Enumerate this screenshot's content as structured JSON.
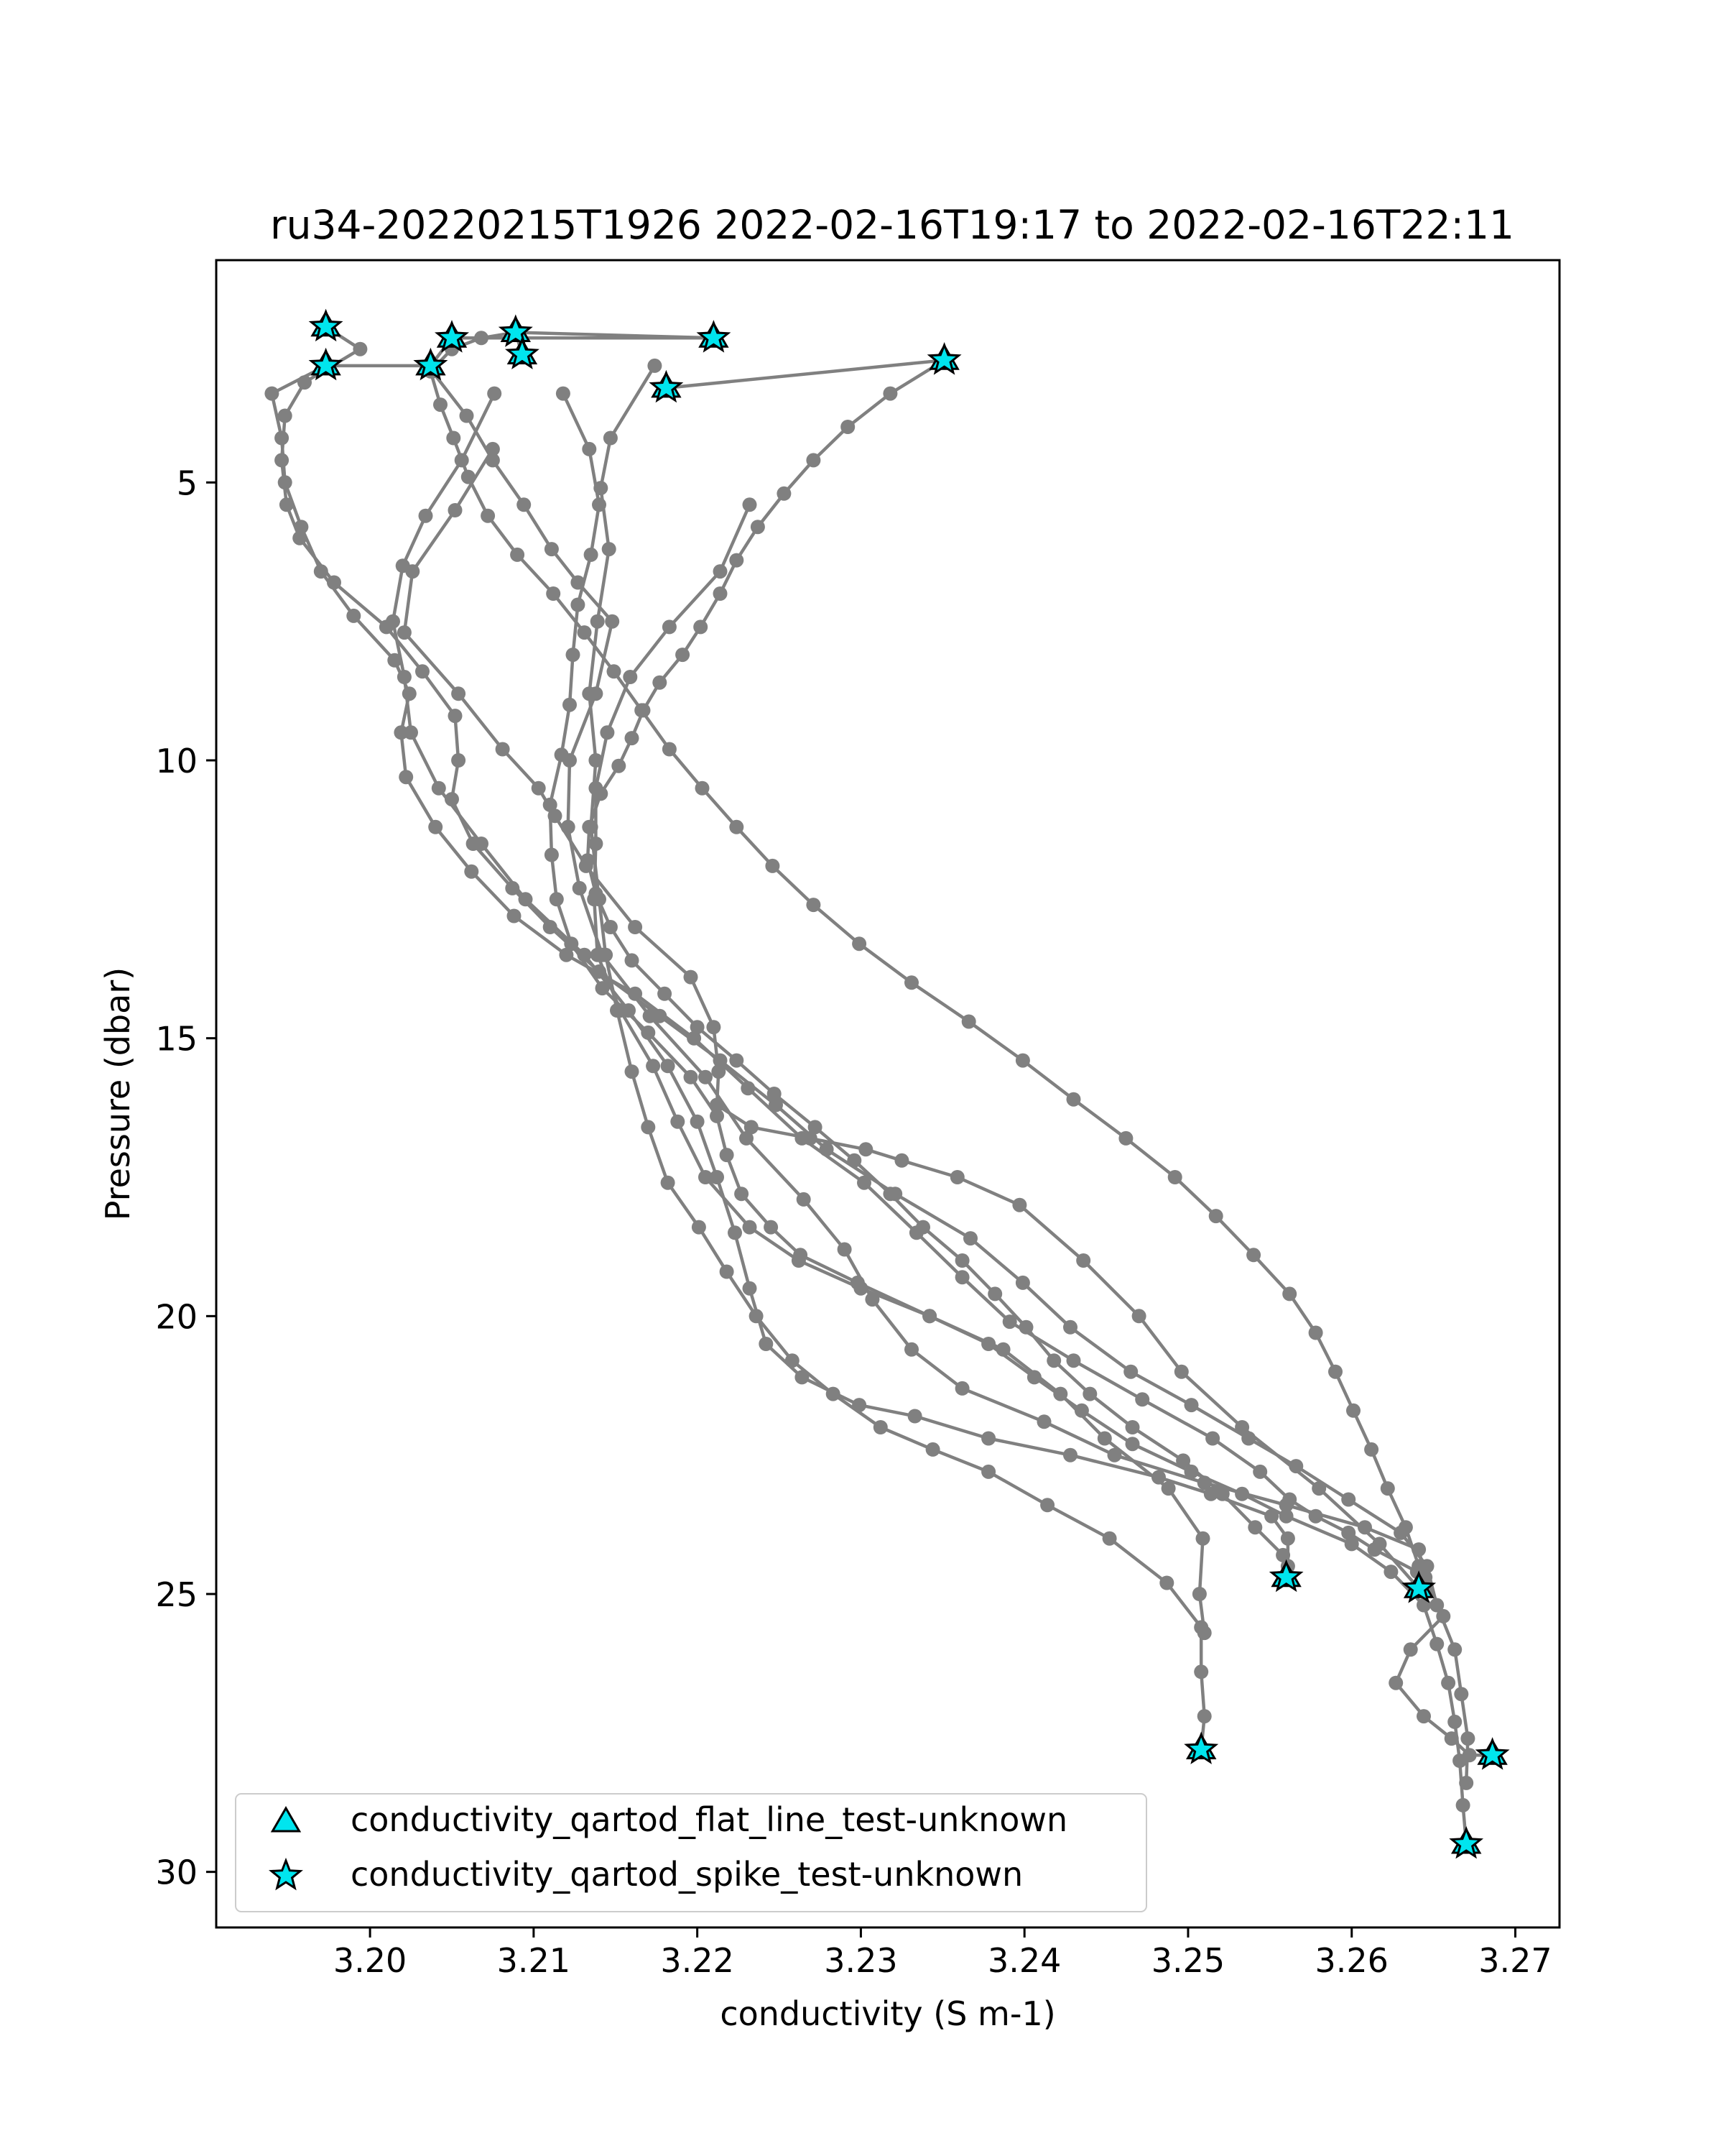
{
  "chart_data": {
    "type": "scatter",
    "title": "ru34-20220215T1926 2022-02-16T19:17 to 2022-02-16T22:11",
    "xlabel": "conductivity (S m-1)",
    "ylabel": "Pressure (dbar)",
    "xlim": [
      3.1906,
      3.2727
    ],
    "ylim": [
      31.0,
      1.0
    ],
    "y_inverted": true,
    "grid": false,
    "legend_position": "lower-left",
    "xticks": [
      {
        "value": 3.2,
        "label": "3.20"
      },
      {
        "value": 3.21,
        "label": "3.21"
      },
      {
        "value": 3.22,
        "label": "3.22"
      },
      {
        "value": 3.23,
        "label": "3.23"
      },
      {
        "value": 3.24,
        "label": "3.24"
      },
      {
        "value": 3.25,
        "label": "3.25"
      },
      {
        "value": 3.26,
        "label": "3.26"
      },
      {
        "value": 3.27,
        "label": "3.27"
      }
    ],
    "yticks": [
      {
        "value": 5,
        "label": "5"
      },
      {
        "value": 10,
        "label": "10"
      },
      {
        "value": 15,
        "label": "15"
      },
      {
        "value": 20,
        "label": "20"
      },
      {
        "value": 25,
        "label": "25"
      },
      {
        "value": 30,
        "label": "30"
      }
    ],
    "colors": {
      "profile_line": "#808080",
      "marker_fill": "#00e5ee",
      "marker_edge": "#000000",
      "frame": "#000000"
    },
    "profiles": [
      {
        "x": [
          3.2174,
          3.2147,
          3.2141,
          3.2146,
          3.2139,
          3.2134,
          3.2138,
          3.2135,
          3.214,
          3.2144,
          3.2151,
          3.216,
          3.217,
          3.2182,
          3.2201,
          3.2218,
          3.2236,
          3.2258,
          3.2283,
          3.2312,
          3.2344,
          3.2378,
          3.2414,
          3.2452,
          3.2487,
          3.2508,
          3.2508,
          3.251,
          3.2508
        ],
        "y": [
          2.9,
          4.2,
          5.1,
          6.2,
          7.5,
          8.8,
          10.0,
          11.2,
          12.5,
          13.5,
          14.5,
          15.6,
          16.6,
          17.6,
          18.4,
          19.2,
          20.0,
          20.8,
          21.4,
          22.0,
          22.4,
          22.8,
          23.4,
          24.0,
          24.8,
          25.6,
          26.4,
          27.2,
          27.8
        ]
      },
      {
        "x": [
          3.2232,
          3.2214,
          3.2183,
          3.2159,
          3.2145,
          3.2138,
          3.2138,
          3.2137,
          3.2139,
          3.2153,
          3.2173,
          3.2188,
          3.2205,
          3.2232,
          3.2262,
          3.23,
          3.2342,
          3.2387,
          3.2422,
          3.2449,
          3.2488,
          3.2509,
          3.2507,
          3.251
        ],
        "y": [
          5.4,
          6.6,
          7.6,
          8.5,
          9.5,
          10.5,
          11.5,
          12.5,
          13.5,
          14.5,
          15.5,
          16.5,
          17.5,
          18.4,
          19.0,
          19.5,
          20.0,
          20.6,
          21.4,
          22.2,
          23.1,
          24.0,
          25.0,
          25.7
        ]
      },
      {
        "x": [
          3.2076,
          3.2056,
          3.2034,
          3.202,
          3.2014,
          3.2021,
          3.2025,
          3.2042,
          3.2068,
          3.2095,
          3.2131,
          3.2158,
          3.2182,
          3.22,
          3.2212,
          3.2223,
          3.2232,
          3.2242,
          3.2264,
          3.2299,
          3.2333,
          3.2378,
          3.2428,
          3.2482,
          3.2514,
          3.2551,
          3.2561,
          3.2561,
          3.256
        ],
        "y": [
          3.4,
          4.6,
          5.6,
          6.5,
          7.5,
          8.5,
          9.5,
          10.5,
          11.5,
          12.5,
          13.5,
          14.5,
          15.5,
          16.5,
          17.5,
          18.5,
          19.5,
          20.5,
          21.1,
          21.6,
          21.8,
          22.2,
          22.5,
          22.9,
          23.2,
          23.6,
          24.0,
          24.5,
          24.7
        ]
      },
      {
        "x": [
          3.2075,
          3.2052,
          3.2026,
          3.2021,
          3.2054,
          3.2081,
          3.2103,
          3.2113,
          3.2132,
          3.2162,
          3.2196,
          3.221,
          3.2213,
          3.2212,
          3.2233,
          3.2269,
          3.2303,
          3.2325,
          3.2359,
          3.2397,
          3.2436,
          3.247,
          3.2496,
          3.2533,
          3.258,
          3.2617,
          3.2641
        ],
        "y": [
          4.4,
          5.5,
          6.6,
          7.7,
          8.8,
          9.8,
          10.5,
          11.0,
          11.9,
          13.0,
          13.9,
          14.8,
          15.6,
          16.2,
          16.6,
          16.8,
          17.0,
          17.2,
          17.5,
          18.0,
          19.0,
          20.0,
          21.0,
          22.0,
          23.1,
          24.1,
          24.9
        ]
      },
      {
        "x": [
          3.2038,
          3.2059,
          3.2075,
          3.2094,
          3.2111,
          3.2127,
          3.2148,
          3.2138,
          3.2122,
          3.2121,
          3.2128,
          3.2142,
          3.2171,
          3.2205,
          3.223,
          3.2265,
          3.229,
          3.2307,
          3.2331,
          3.2362,
          3.2412,
          3.2455,
          3.251,
          3.256,
          3.2608,
          3.2641,
          3.2645,
          3.2656,
          3.2636,
          3.2627,
          3.2644,
          3.2661,
          3.2672,
          3.2686
        ],
        "y": [
          3.0,
          3.8,
          4.6,
          5.4,
          6.2,
          6.8,
          7.5,
          8.8,
          10.0,
          11.2,
          12.3,
          13.5,
          14.6,
          15.7,
          16.8,
          17.9,
          18.8,
          19.7,
          20.6,
          21.3,
          21.9,
          22.5,
          23.0,
          23.4,
          23.8,
          24.2,
          24.7,
          25.4,
          26.0,
          26.6,
          27.2,
          27.6,
          27.9,
          27.9
        ]
      },
      {
        "x": [
          3.1973,
          3.194,
          3.1946,
          3.1948,
          3.1958,
          3.197,
          3.199,
          3.2015,
          3.2024,
          3.2019,
          3.2022,
          3.204,
          3.2062,
          3.2088,
          3.212,
          3.2162,
          3.2198,
          3.2231,
          3.2264,
          3.2302,
          3.2334,
          3.2362,
          3.2391,
          3.243,
          3.2472,
          3.2515,
          3.2544,
          3.2562,
          3.2578,
          3.2598,
          3.2614,
          3.264
        ],
        "y": [
          2.9,
          3.4,
          4.2,
          5.0,
          5.8,
          6.6,
          7.4,
          8.2,
          8.8,
          9.5,
          10.3,
          11.2,
          12.0,
          12.8,
          13.5,
          14.2,
          15.0,
          15.9,
          16.8,
          17.6,
          18.5,
          19.3,
          20.1,
          20.8,
          21.5,
          22.2,
          22.8,
          23.3,
          23.6,
          23.9,
          24.2,
          24.6
        ]
      },
      {
        "x": [
          3.1973,
          3.1994,
          3.196,
          3.1948,
          3.1946,
          3.1949,
          3.1957,
          3.1978,
          3.201,
          3.2032,
          3.2052,
          3.2054,
          3.205,
          3.2063,
          3.2087,
          3.211,
          3.214,
          3.2177,
          3.2214,
          3.2248,
          3.2279,
          3.2321,
          3.2367,
          3.2399,
          3.2428,
          3.2465,
          3.2502,
          3.2537,
          3.2566,
          3.2598,
          3.263,
          3.2646,
          3.2652,
          3.2663,
          3.2667,
          3.2671,
          3.267
        ],
        "y": [
          2.2,
          2.6,
          3.2,
          3.8,
          4.6,
          5.4,
          6.0,
          6.8,
          7.6,
          8.4,
          9.2,
          10.0,
          10.7,
          11.5,
          12.3,
          13.0,
          13.8,
          14.6,
          15.4,
          16.2,
          17.0,
          17.8,
          18.6,
          19.4,
          20.2,
          21.0,
          21.6,
          22.2,
          22.7,
          23.3,
          23.9,
          24.5,
          25.2,
          26.0,
          26.8,
          27.6,
          28.4
        ]
      },
      {
        "x": [
          3.2118,
          3.2134,
          3.214,
          3.2135,
          3.2127,
          3.2124,
          3.2122,
          3.2117,
          3.211,
          3.2111,
          3.2114,
          3.2123,
          3.2142,
          3.217,
          3.2196,
          3.2212,
          3.2218,
          3.2227,
          3.2245,
          3.2263,
          3.2298,
          3.2342,
          3.2378,
          3.2406,
          3.2435,
          3.2466,
          3.2502,
          3.2533,
          3.256,
          3.26,
          3.2624,
          3.2644,
          3.2652,
          3.2659,
          3.2663,
          3.2666,
          3.2668,
          3.267
        ],
        "y": [
          3.4,
          4.4,
          5.4,
          6.3,
          7.2,
          8.1,
          9.0,
          9.9,
          10.8,
          11.7,
          12.5,
          13.3,
          14.1,
          14.9,
          15.7,
          16.4,
          17.1,
          17.8,
          18.4,
          18.9,
          19.4,
          20.0,
          20.5,
          21.1,
          21.7,
          22.3,
          22.8,
          23.2,
          23.6,
          24.1,
          24.6,
          25.2,
          25.9,
          26.6,
          27.3,
          28.0,
          28.8,
          29.5
        ]
      },
      {
        "x": [
          3.2351,
          3.2318,
          3.2292,
          3.2271,
          3.2253,
          3.2237,
          3.2224,
          3.2214,
          3.2202,
          3.2191,
          3.2177,
          3.2167,
          3.216,
          3.2152,
          3.2141,
          3.2134,
          3.2133,
          3.2138,
          3.2147,
          3.216,
          3.218,
          3.22,
          3.2224,
          3.2247,
          3.2272,
          3.2296,
          3.2318,
          3.2338,
          3.2362,
          3.2382,
          3.2401,
          3.2418,
          3.244,
          3.2466,
          3.2497,
          3.2521,
          3.2541,
          3.2558,
          3.2561
        ],
        "y": [
          2.8,
          3.4,
          4.0,
          4.6,
          5.2,
          5.8,
          6.4,
          7.0,
          7.6,
          8.1,
          8.6,
          9.1,
          9.6,
          10.1,
          10.6,
          11.2,
          11.8,
          12.4,
          13.0,
          13.6,
          14.2,
          14.8,
          15.4,
          16.0,
          16.6,
          17.2,
          17.8,
          18.4,
          19.0,
          19.6,
          20.2,
          20.8,
          21.4,
          22.0,
          22.6,
          23.2,
          23.8,
          24.3,
          24.7
        ]
      },
      {
        "x": [
          3.2089,
          3.2068,
          3.205,
          3.2037,
          3.2043,
          3.2051,
          3.206,
          3.2072,
          3.209,
          3.2112,
          3.2131,
          3.2149,
          3.2166,
          3.2183,
          3.2203,
          3.2224,
          3.2246,
          3.2271,
          3.2299,
          3.2331,
          3.2366,
          3.2399,
          3.243,
          3.2462,
          3.2492,
          3.2517,
          3.254,
          3.2562,
          3.2578,
          3.259,
          3.2601,
          3.2612,
          3.2622,
          3.2633,
          3.2641
        ],
        "y": [
          2.3,
          2.4,
          2.6,
          3.0,
          3.6,
          4.2,
          4.9,
          5.6,
          6.3,
          7.0,
          7.7,
          8.4,
          9.1,
          9.8,
          10.5,
          11.2,
          11.9,
          12.6,
          13.3,
          14.0,
          14.7,
          15.4,
          16.1,
          16.8,
          17.5,
          18.2,
          18.9,
          19.6,
          20.3,
          21.0,
          21.7,
          22.4,
          23.1,
          23.8,
          24.5
        ]
      }
    ],
    "flat_line_markers": {
      "name": "conductivity_qartod_flat_line_test-unknown",
      "x": [
        3.1973,
        3.1973,
        3.2037,
        3.205,
        3.2089,
        3.2093,
        3.221,
        3.2181,
        3.2351,
        3.256,
        3.2641,
        3.2508,
        3.2686,
        3.267
      ],
      "y": [
        2.2,
        2.9,
        2.9,
        2.4,
        2.3,
        2.7,
        2.4,
        3.3,
        2.8,
        24.7,
        24.9,
        27.8,
        27.9,
        29.5
      ]
    },
    "spike_markers": {
      "name": "conductivity_qartod_spike_test-unknown",
      "x": [
        3.1973,
        3.1973,
        3.2037,
        3.205,
        3.2089,
        3.2093,
        3.221,
        3.2181,
        3.2351,
        3.256,
        3.2641,
        3.2508,
        3.2686,
        3.267
      ],
      "y": [
        2.2,
        2.9,
        2.9,
        2.4,
        2.3,
        2.7,
        2.4,
        3.3,
        2.8,
        24.7,
        24.9,
        27.8,
        27.9,
        29.5
      ]
    },
    "segment_lines": [
      {
        "x": [
          3.1973,
          3.2037,
          3.205,
          3.221,
          3.2089,
          3.2093
        ],
        "y": [
          2.9,
          2.9,
          2.4,
          2.4,
          2.3,
          2.7
        ]
      },
      {
        "x": [
          3.2181,
          3.2351
        ],
        "y": [
          3.3,
          2.8
        ]
      }
    ],
    "legend": [
      {
        "label": "conductivity_qartod_flat_line_test-unknown",
        "marker": "triangle"
      },
      {
        "label": "conductivity_qartod_spike_test-unknown",
        "marker": "star"
      }
    ]
  }
}
